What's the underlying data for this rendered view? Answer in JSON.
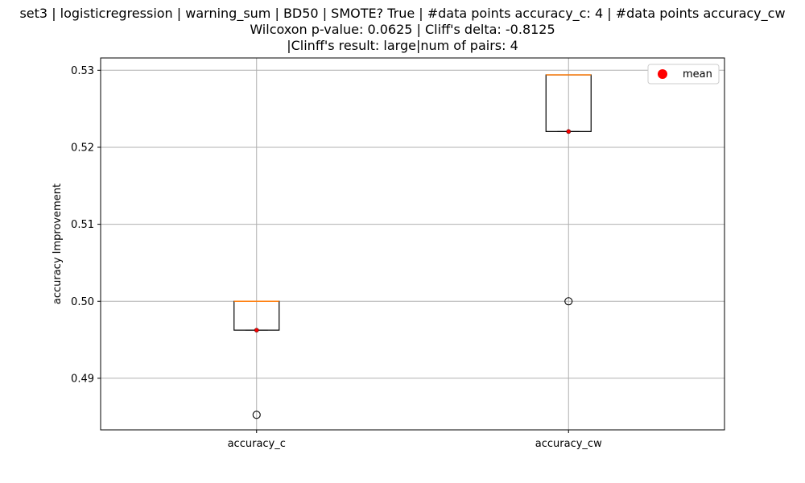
{
  "chart_data": {
    "type": "box",
    "title_lines": [
      "set3 | logisticregression | warning_sum | BD50 | SMOTE? True | #data points accuracy_c: 4 | #data points accuracy_cw",
      "Wilcoxon p-value: 0.0625 | Cliff's delta: -0.8125",
      "|Clinff's result: large|num of pairs: 4"
    ],
    "ylabel": "accuracy Improvement",
    "ylim": [
      0.4833,
      0.5316
    ],
    "yticks": [
      0.49,
      0.5,
      0.51,
      0.52,
      0.53
    ],
    "ytick_labels": [
      "0.49",
      "0.50",
      "0.51",
      "0.52",
      "0.53"
    ],
    "grid": true,
    "legend": {
      "placement": "top-right",
      "entries": [
        {
          "label": "mean",
          "color": "#ff0000",
          "marker": "circle"
        }
      ]
    },
    "categories": [
      "accuracy_c",
      "accuracy_cw"
    ],
    "boxes": [
      {
        "category": "accuracy_c",
        "q1": 0.49625,
        "median": 0.5,
        "q3": 0.5,
        "whisker_low": 0.49625,
        "whisker_high": 0.5,
        "outliers": [
          0.48525
        ],
        "mean": 0.49625
      },
      {
        "category": "accuracy_cw",
        "q1": 0.52205,
        "median": 0.5294,
        "q3": 0.5294,
        "whisker_low": 0.52205,
        "whisker_high": 0.5294,
        "outliers": [
          0.5
        ],
        "mean": 0.52205
      }
    ],
    "colors": {
      "box": "#000000",
      "median": "#ff7f0e",
      "mean": "#ff0000",
      "outlier": "#000000",
      "grid": "#b0b0b0"
    }
  }
}
